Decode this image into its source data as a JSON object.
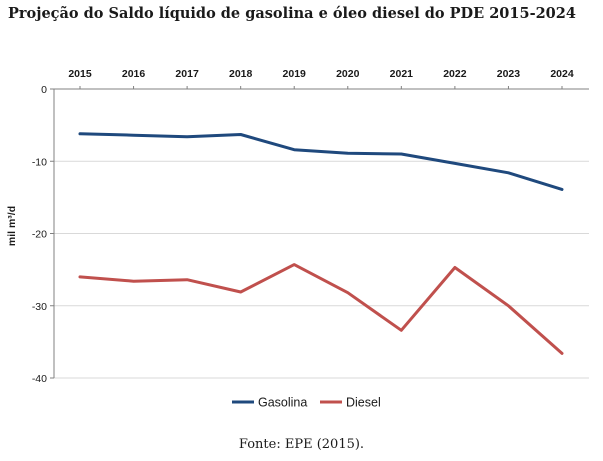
{
  "title": "Projeção do Saldo líquido de gasolina e óleo diesel do PDE 2015-2024",
  "source": "Fonte: EPE (2015).",
  "chart_data": {
    "type": "line",
    "x": [
      "2015",
      "2016",
      "2017",
      "2018",
      "2019",
      "2020",
      "2021",
      "2022",
      "2023",
      "2024"
    ],
    "ylabel": "mil m³/d",
    "ylim": [
      -40,
      0
    ],
    "yticks": [
      "0",
      "-10",
      "-20",
      "-30",
      "-40"
    ],
    "x_axis_position": "top",
    "grid": true,
    "legend_position": "bottom",
    "series": [
      {
        "name": "Gasolina",
        "color": "#1f497d",
        "values": [
          -6.2,
          -6.4,
          -6.6,
          -6.3,
          -8.4,
          -8.9,
          -9.0,
          -10.3,
          -11.6,
          -13.9
        ]
      },
      {
        "name": "Diesel",
        "color": "#c0504d",
        "values": [
          -26.0,
          -26.6,
          -26.4,
          -28.1,
          -24.3,
          -28.2,
          -33.4,
          -24.7,
          -30.0,
          -36.6
        ]
      }
    ]
  }
}
